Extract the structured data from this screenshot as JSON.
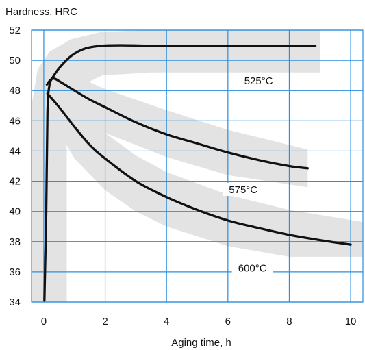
{
  "chart_data": {
    "type": "line",
    "title": "",
    "ylabel": "Hardness, HRC",
    "xlabel": "Aging time, h",
    "xlim": [
      -0.4,
      10.4
    ],
    "ylim": [
      34,
      52
    ],
    "x_ticks": [
      0,
      2,
      4,
      6,
      8,
      10
    ],
    "y_ticks": [
      34,
      36,
      38,
      40,
      42,
      44,
      46,
      48,
      50,
      52
    ],
    "grid": true,
    "colors": {
      "grid": "#2a8fe0",
      "band": "#e3e3e3",
      "line": "#111111",
      "axis_text": "#111111"
    },
    "series": [
      {
        "name": "525°C",
        "label_position": {
          "x": 7.0,
          "y": 48.5
        },
        "points": [
          [
            0.02,
            34.1
          ],
          [
            0.08,
            40.0
          ],
          [
            0.12,
            46.5
          ],
          [
            0.18,
            48.3
          ],
          [
            0.3,
            48.9
          ],
          [
            0.55,
            49.6
          ],
          [
            0.9,
            50.3
          ],
          [
            1.3,
            50.75
          ],
          [
            1.8,
            50.95
          ],
          [
            2.5,
            51.0
          ],
          [
            4.0,
            50.95
          ],
          [
            6.0,
            50.95
          ],
          [
            8.0,
            50.95
          ],
          [
            8.85,
            50.95
          ]
        ],
        "band": [
          [
            -0.4,
            34.0
          ],
          [
            -0.4,
            47.0
          ],
          [
            -0.2,
            49.4
          ],
          [
            0.2,
            50.6
          ],
          [
            0.9,
            51.4
          ],
          [
            1.9,
            51.9
          ],
          [
            3.5,
            52.0
          ],
          [
            6.0,
            52.0
          ],
          [
            9.0,
            52.0
          ],
          [
            9.0,
            49.2
          ],
          [
            6.0,
            49.2
          ],
          [
            3.5,
            49.2
          ],
          [
            1.9,
            49.0
          ],
          [
            1.1,
            48.2
          ],
          [
            0.7,
            46.7
          ],
          [
            0.75,
            44.0
          ],
          [
            0.75,
            34.0
          ]
        ]
      },
      {
        "name": "575°C",
        "label_position": {
          "x": 6.5,
          "y": 41.3
        },
        "points": [
          [
            0.1,
            48.4
          ],
          [
            0.3,
            48.8
          ],
          [
            0.6,
            48.5
          ],
          [
            1.0,
            48.0
          ],
          [
            1.5,
            47.4
          ],
          [
            2.0,
            46.9
          ],
          [
            3.0,
            45.9
          ],
          [
            4.0,
            45.1
          ],
          [
            5.0,
            44.5
          ],
          [
            6.0,
            43.9
          ],
          [
            7.0,
            43.4
          ],
          [
            8.0,
            43.0
          ],
          [
            8.6,
            42.85
          ]
        ],
        "band": [
          [
            0.3,
            48.9
          ],
          [
            1.0,
            49.0
          ],
          [
            2.0,
            48.1
          ],
          [
            4.0,
            46.7
          ],
          [
            6.0,
            45.4
          ],
          [
            8.6,
            44.1
          ],
          [
            8.6,
            41.6
          ],
          [
            6.0,
            42.4
          ],
          [
            4.0,
            43.6
          ],
          [
            2.0,
            45.2
          ],
          [
            1.0,
            46.3
          ],
          [
            0.3,
            47.3
          ]
        ]
      },
      {
        "name": "600°C",
        "label_position": {
          "x": 6.8,
          "y": 36.1
        },
        "points": [
          [
            0.12,
            47.8
          ],
          [
            0.5,
            46.9
          ],
          [
            1.0,
            45.6
          ],
          [
            1.5,
            44.4
          ],
          [
            2.0,
            43.5
          ],
          [
            3.0,
            42.0
          ],
          [
            4.0,
            40.95
          ],
          [
            5.0,
            40.1
          ],
          [
            6.0,
            39.4
          ],
          [
            7.0,
            38.9
          ],
          [
            8.0,
            38.45
          ],
          [
            9.0,
            38.1
          ],
          [
            10.0,
            37.8
          ]
        ],
        "band": [
          [
            0.15,
            49.5
          ],
          [
            1.0,
            47.3
          ],
          [
            2.0,
            45.2
          ],
          [
            3.0,
            43.7
          ],
          [
            4.0,
            42.6
          ],
          [
            6.0,
            41.1
          ],
          [
            8.0,
            40.1
          ],
          [
            10.4,
            39.3
          ],
          [
            10.4,
            37.0
          ],
          [
            8.0,
            37.0
          ],
          [
            6.0,
            37.7
          ],
          [
            4.0,
            39.0
          ],
          [
            3.0,
            40.0
          ],
          [
            2.0,
            41.4
          ],
          [
            1.0,
            43.5
          ],
          [
            0.35,
            45.8
          ]
        ]
      }
    ]
  }
}
